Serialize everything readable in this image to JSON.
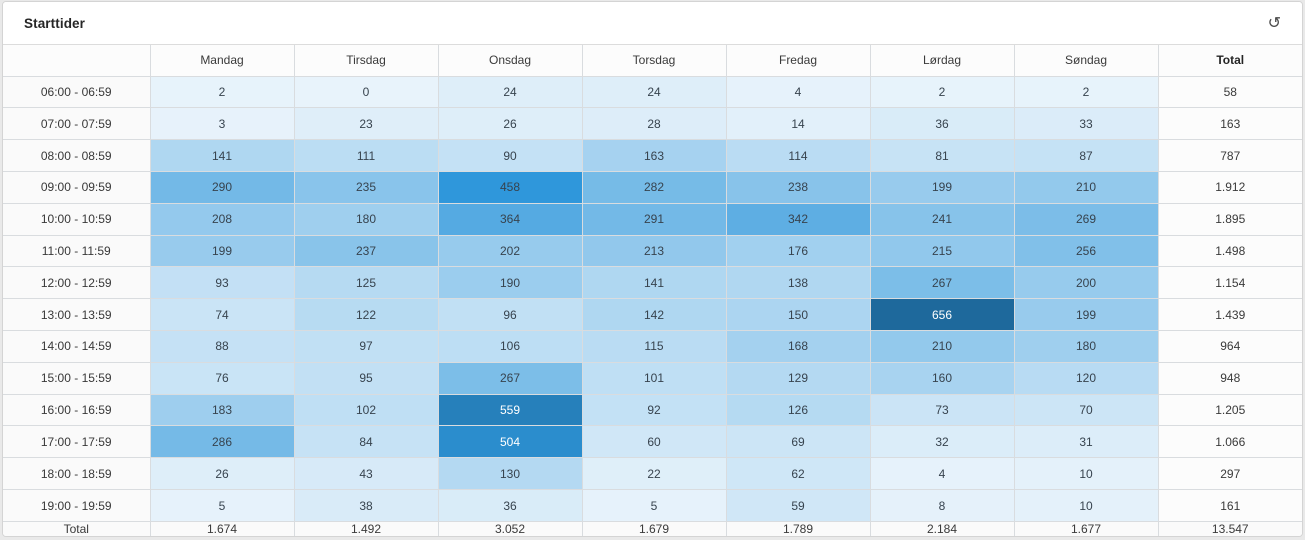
{
  "card": {
    "title": "Starttider"
  },
  "icons": {
    "refresh_glyph": "↺"
  },
  "chart_data": {
    "type": "heatmap",
    "title": "Starttider",
    "columns": [
      "Mandag",
      "Tirsdag",
      "Onsdag",
      "Torsdag",
      "Fredag",
      "Lørdag",
      "Søndag"
    ],
    "total_header": "Total",
    "total_row_label": "Total",
    "row_labels": [
      "06:00 - 06:59",
      "07:00 - 07:59",
      "08:00 - 08:59",
      "09:00 - 09:59",
      "10:00 - 10:59",
      "11:00 - 11:59",
      "12:00 - 12:59",
      "13:00 - 13:59",
      "14:00 - 14:59",
      "15:00 - 15:59",
      "16:00 - 16:59",
      "17:00 - 17:59",
      "18:00 - 18:59",
      "19:00 - 19:59"
    ],
    "values": [
      [
        2,
        0,
        24,
        24,
        4,
        2,
        2
      ],
      [
        3,
        23,
        26,
        28,
        14,
        36,
        33
      ],
      [
        141,
        111,
        90,
        163,
        114,
        81,
        87
      ],
      [
        290,
        235,
        458,
        282,
        238,
        199,
        210
      ],
      [
        208,
        180,
        364,
        291,
        342,
        241,
        269
      ],
      [
        199,
        237,
        202,
        213,
        176,
        215,
        256
      ],
      [
        93,
        125,
        190,
        141,
        138,
        267,
        200
      ],
      [
        74,
        122,
        96,
        142,
        150,
        656,
        199
      ],
      [
        88,
        97,
        106,
        115,
        168,
        210,
        180
      ],
      [
        76,
        95,
        267,
        101,
        129,
        160,
        120
      ],
      [
        183,
        102,
        559,
        92,
        126,
        73,
        70
      ],
      [
        286,
        84,
        504,
        60,
        69,
        32,
        31
      ],
      [
        26,
        43,
        130,
        22,
        62,
        4,
        10
      ],
      [
        5,
        38,
        36,
        5,
        59,
        8,
        10
      ]
    ],
    "row_totals": [
      "58",
      "163",
      "787",
      "1.912",
      "1.895",
      "1.498",
      "1.154",
      "1.439",
      "964",
      "948",
      "1.205",
      "1.066",
      "297",
      "161"
    ],
    "column_totals": [
      "1.674",
      "1.492",
      "3.052",
      "1.679",
      "1.789",
      "2.184",
      "1.677"
    ],
    "grand_total": "13.547",
    "color_scale": {
      "min": 0,
      "max": 656,
      "stops": [
        {
          "t": 0,
          "color": "#e8f3fb"
        },
        {
          "t": 0.7,
          "color": "#2f97db"
        },
        {
          "t": 1,
          "color": "#1e699c"
        }
      ],
      "white_text_threshold": 0.74,
      "dark_text_color": "#37434e",
      "light_text_color": "#ffffff"
    },
    "legend_position": "none",
    "grid": true
  }
}
